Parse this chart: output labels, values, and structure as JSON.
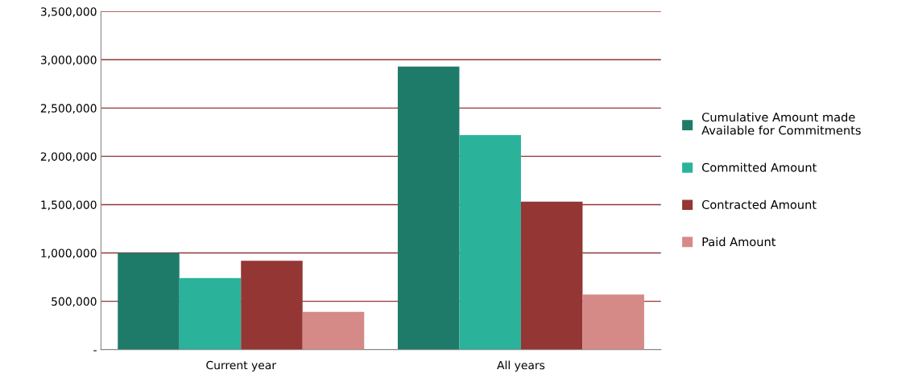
{
  "chart_data": {
    "type": "bar",
    "categories": [
      "Current year",
      "All years"
    ],
    "series": [
      {
        "name": "Cumulative Amount made\nAvailable for Commitments",
        "color": "#1e7b69",
        "values": [
          1000000,
          2930000
        ]
      },
      {
        "name": "Committed Amount",
        "color": "#2ab39a",
        "values": [
          740000,
          2220000
        ]
      },
      {
        "name": "Contracted Amount",
        "color": "#943634",
        "values": [
          920000,
          1530000
        ]
      },
      {
        "name": "Paid Amount",
        "color": "#d58a87",
        "values": [
          390000,
          570000
        ]
      }
    ],
    "ylim": [
      0,
      3500000
    ],
    "yticks": [
      {
        "value": 0,
        "label": "-"
      },
      {
        "value": 500000,
        "label": "500,000"
      },
      {
        "value": 1000000,
        "label": "1,000,000"
      },
      {
        "value": 1500000,
        "label": "1,500,000"
      },
      {
        "value": 2000000,
        "label": "2,000,000"
      },
      {
        "value": 2500000,
        "label": "2,500,000"
      },
      {
        "value": 3000000,
        "label": "3,000,000"
      },
      {
        "value": 3500000,
        "label": "3,500,000"
      }
    ],
    "grid": "y",
    "legend": "right"
  }
}
